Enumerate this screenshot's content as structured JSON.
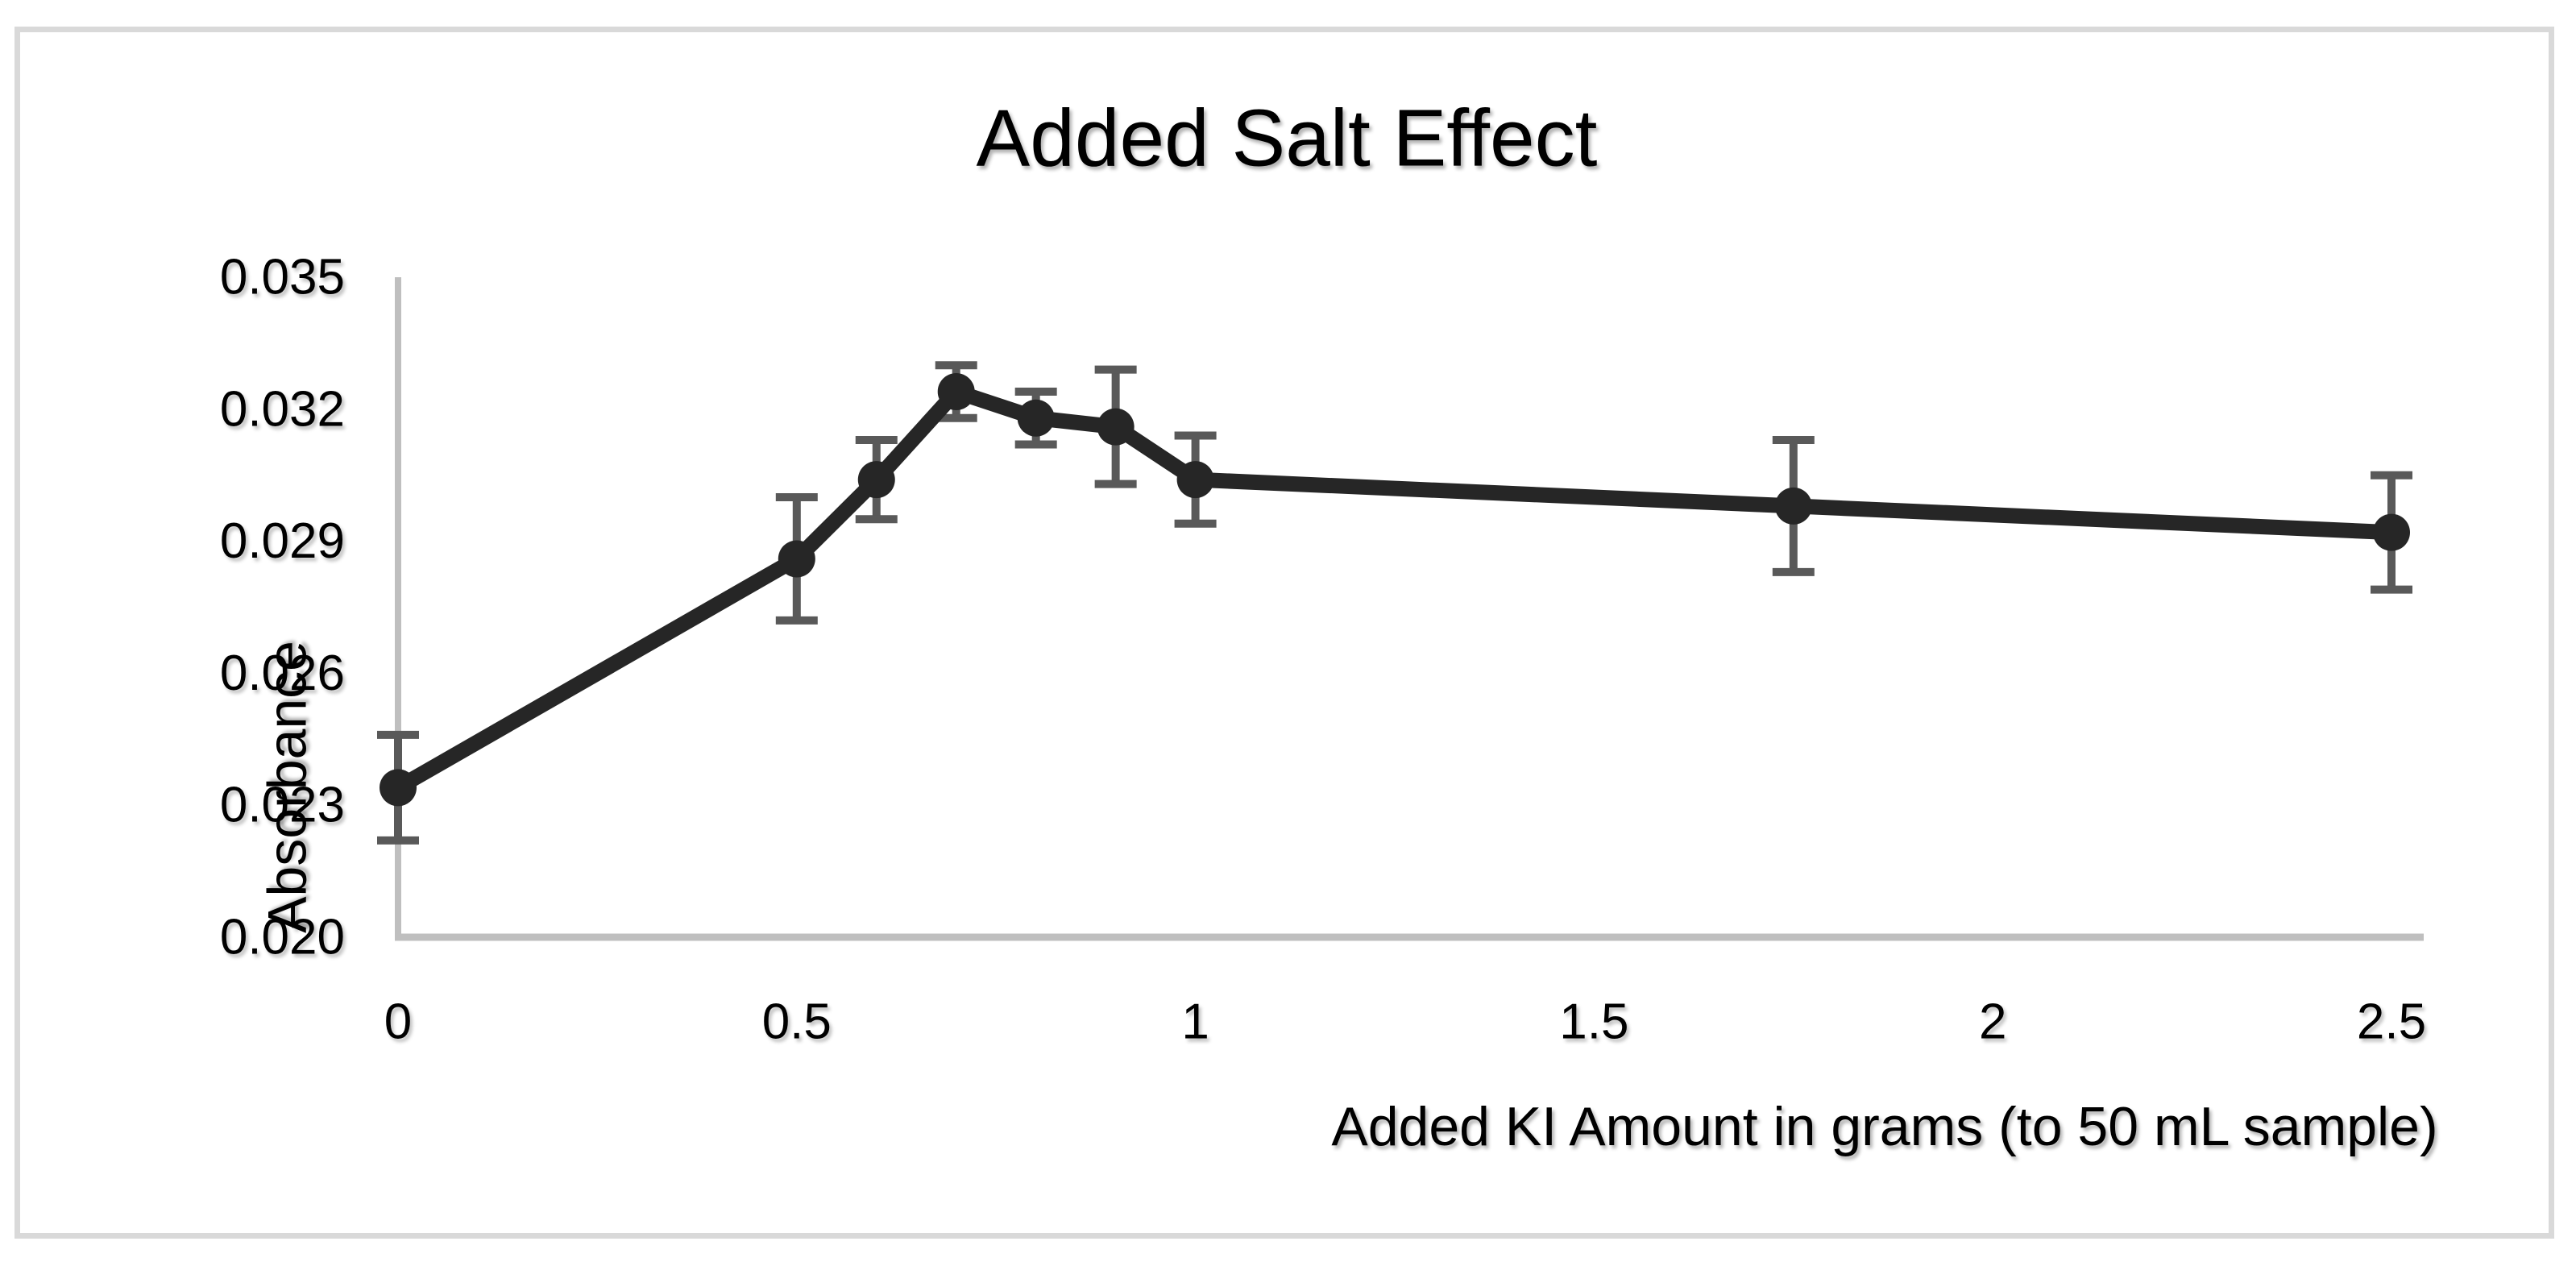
{
  "chart_data": {
    "type": "line",
    "title": "Added Salt Effect",
    "xlabel": "Added KI Amount in grams (to 50 mL sample)",
    "ylabel": "Absorbance",
    "grid": false,
    "legend": null,
    "xlim": [
      0,
      2.54
    ],
    "ylim": [
      0.02,
      0.035
    ],
    "x_ticks": [
      0,
      0.5,
      1,
      1.5,
      2,
      2.5
    ],
    "x_tick_labels": [
      "0",
      "0.5",
      "1",
      "1.5",
      "2",
      "2.5"
    ],
    "y_ticks": [
      0.02,
      0.023,
      0.026,
      0.029,
      0.032,
      0.035
    ],
    "y_tick_labels": [
      "0.020",
      "0.023",
      "0.026",
      "0.029",
      "0.032",
      "0.035"
    ],
    "series": [
      {
        "name": "Absorbance",
        "marker": "circle",
        "color": "#262626",
        "error_color": "#595959",
        "points": [
          {
            "x": 0,
            "y": 0.0234,
            "err": 0.0012
          },
          {
            "x": 0.5,
            "y": 0.0286,
            "err": 0.0014
          },
          {
            "x": 0.6,
            "y": 0.0304,
            "err": 0.0009
          },
          {
            "x": 0.7,
            "y": 0.0324,
            "err": 0.0006
          },
          {
            "x": 0.8,
            "y": 0.0318,
            "err": 0.0006
          },
          {
            "x": 0.9,
            "y": 0.0316,
            "err": 0.0013
          },
          {
            "x": 1.0,
            "y": 0.0304,
            "err": 0.001
          },
          {
            "x": 1.75,
            "y": 0.0298,
            "err": 0.0015
          },
          {
            "x": 2.5,
            "y": 0.0292,
            "err": 0.0013
          }
        ]
      }
    ],
    "colors": {
      "series": "#262626",
      "error_bars": "#595959",
      "axis_lines": "#bfbfbf",
      "chart_border": "#d9d9d9",
      "text": "#000000",
      "background": "#ffffff"
    }
  }
}
